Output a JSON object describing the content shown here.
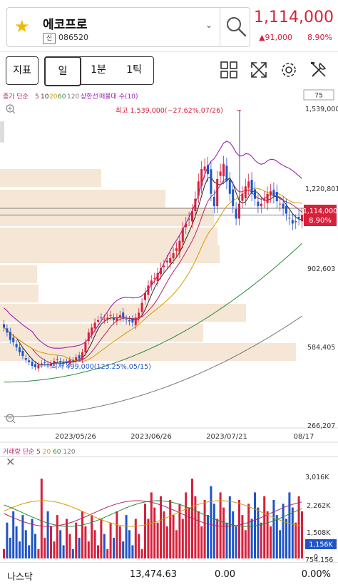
{
  "header": {
    "stock_name": "에코프로",
    "badge": "신",
    "stock_code": "086520",
    "price": "1,114,000",
    "change": "▲91,000",
    "change_pct": "8.90%",
    "up_color": "#d6213b",
    "down_color": "#1f55c8"
  },
  "toolbar": {
    "indicator_label": "지표",
    "periods": [
      "일",
      "1분",
      "1틱"
    ],
    "selected_period": "일",
    "icons": [
      "layout-grid-icon",
      "expand-icon",
      "settings-icon",
      "tools-icon"
    ]
  },
  "chart_data": [
    {
      "type": "candlestick",
      "legend": {
        "prefix": "종가 단순",
        "periods": [
          "5",
          "10",
          "20",
          "60",
          "120"
        ],
        "extra": [
          "상한선",
          "매물대 수(10)"
        ]
      },
      "legend_value": "75",
      "y_ticks": [
        "1,539,000",
        "1,220,801",
        "902,603",
        "584,405",
        "266,207"
      ],
      "x_ticks": [
        "2023/05/26",
        "2023/06/26",
        "2023/07/21",
        "08/17"
      ],
      "current_price_label": "1,114,000",
      "current_pct_label": "8.90%",
      "high_annotation": "최고 1,539,000(−27.62%,07/26)",
      "low_annotation": "최저 499,000(123.25%,05/15)",
      "high": 1539000,
      "low": 499000,
      "current": 1114000,
      "ylim": [
        266207,
        1539000
      ]
    },
    {
      "type": "bar",
      "legend": {
        "prefix": "거래량 단순",
        "periods": [
          "5",
          "20",
          "60",
          "120"
        ]
      },
      "y_ticks": [
        "3,016K",
        "2,262K",
        "1,508K",
        "754,156",
        "0"
      ],
      "current_label": "1,156K",
      "ylim": [
        0,
        3016000
      ]
    }
  ],
  "status": {
    "market": "나스닥",
    "index": "13,474.63",
    "change": "0.00",
    "pct": "0.00%"
  }
}
